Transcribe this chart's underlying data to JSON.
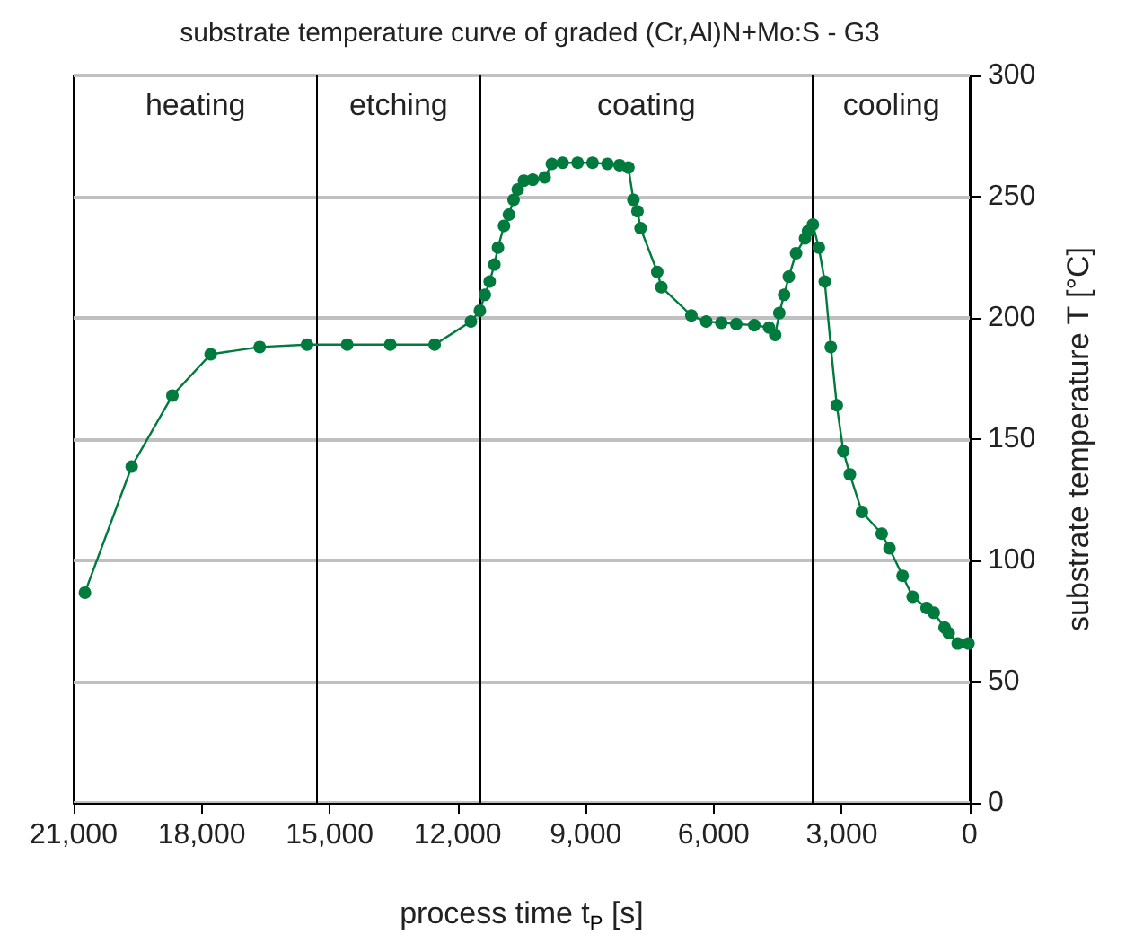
{
  "chart_data": {
    "type": "line",
    "title": "substrate temperature curve of graded (Cr,Al)N+Mo:S - G3",
    "xlabel": "process time t$_{P}$ [s]",
    "ylabel": "substrate temperature T [°C]",
    "x": [
      20735,
      19640,
      18686,
      17790,
      16640,
      15530,
      14590,
      13580,
      12540,
      11690,
      11480,
      11364,
      11250,
      11140,
      11056,
      10914,
      10800,
      10690,
      10593,
      10450,
      10240,
      9962,
      9794,
      9540,
      9190,
      8840,
      8490,
      8208,
      8000,
      7883,
      7787,
      7715,
      7324,
      7227,
      6525,
      6175,
      5822,
      5472,
      5050,
      4703,
      4560,
      4463,
      4350,
      4240,
      4070,
      3860,
      3790,
      3676,
      3537,
      3398,
      3256,
      3117,
      2962,
      2810,
      2527,
      2064,
      1882,
      1574,
      1337,
      1012,
      843,
      590,
      493,
      282,
      30
    ],
    "series": [
      {
        "color": "#007a3d",
        "values": [
          86.7,
          138.7,
          168,
          185,
          188,
          189,
          189,
          189,
          189,
          198.5,
          203,
          209.5,
          215,
          222,
          229,
          238,
          242.6,
          248.7,
          253,
          256.6,
          257,
          258,
          263.5,
          264,
          264,
          264,
          263.5,
          263,
          262,
          248.7,
          244,
          237,
          219,
          212.7,
          201,
          198.5,
          198,
          197.5,
          197,
          196,
          193,
          202,
          209.5,
          217,
          226.7,
          232.8,
          235.8,
          238.5,
          229,
          215,
          188,
          164,
          145,
          135.5,
          120,
          111,
          105,
          93.6,
          85,
          80.4,
          78.4,
          72.3,
          70,
          65.7,
          65.7
        ]
      }
    ],
    "xlim": [
      21000,
      0
    ],
    "xticks": [
      {
        "value": 21000,
        "label": "21,000"
      },
      {
        "value": 18000,
        "label": "18,000"
      },
      {
        "value": 15000,
        "label": "15,000"
      },
      {
        "value": 12000,
        "label": "12,000"
      },
      {
        "value": 9000,
        "label": "9,000"
      },
      {
        "value": 6000,
        "label": "6,000"
      },
      {
        "value": 3000,
        "label": "3,000"
      },
      0
    ],
    "ylim": [
      0,
      300
    ],
    "yticks": [
      0,
      50,
      100,
      150,
      200,
      250,
      300
    ],
    "ref_lines": [
      {
        "axis": "x",
        "value": 15290,
        "color": "#000000"
      },
      {
        "axis": "x",
        "value": 11480,
        "color": "#000000"
      },
      {
        "axis": "x",
        "value": 3675,
        "color": "#000000"
      }
    ],
    "annotations": [
      "heating",
      "etching",
      "coating",
      "cooling"
    ],
    "grid": "y",
    "marker": "circle",
    "line_style": "solid"
  }
}
